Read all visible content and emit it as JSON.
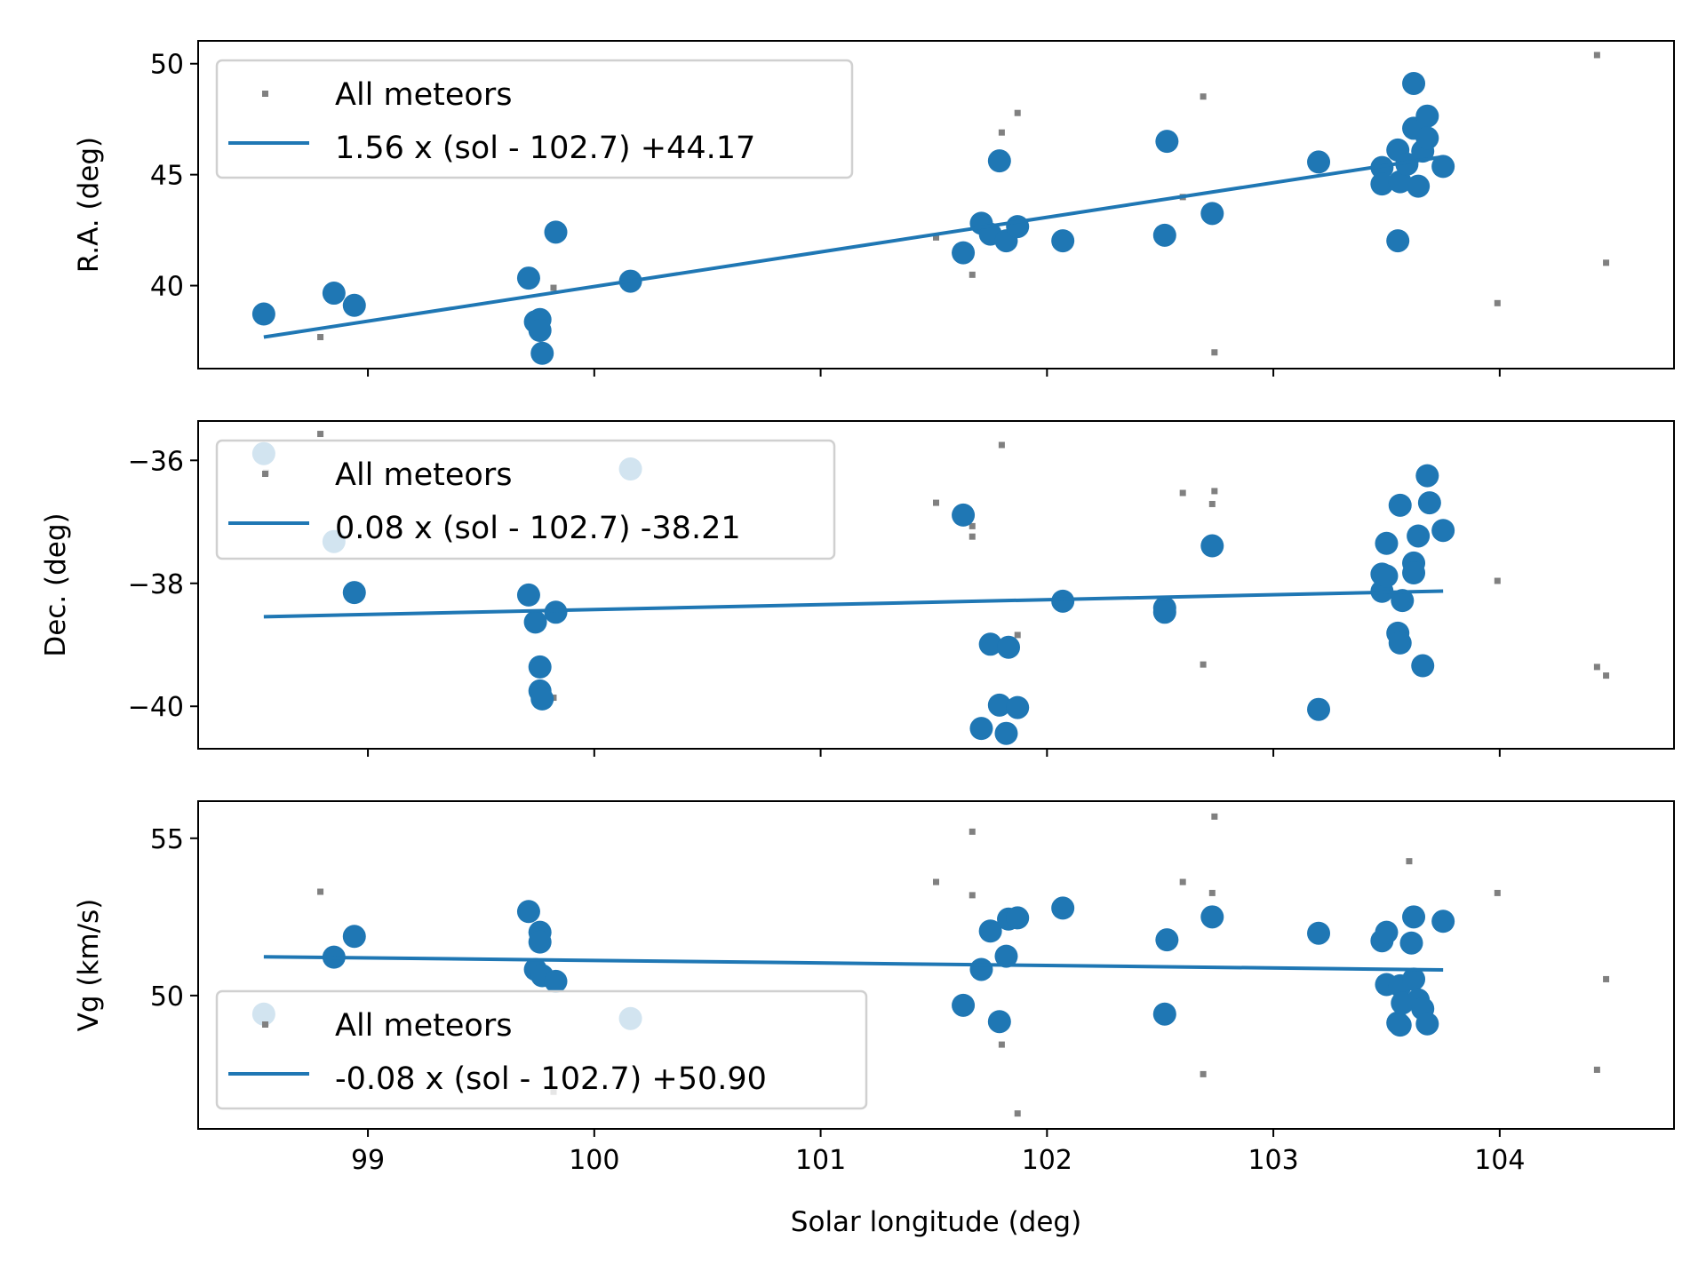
{
  "colors": {
    "fit": "#1f77b4",
    "points": "#1f77b4",
    "all": "#808080"
  },
  "xaxis": {
    "label": "Solar longitude (deg)",
    "lim": [
      98.25,
      104.77
    ],
    "ticks": [
      99,
      100,
      101,
      102,
      103,
      104
    ]
  },
  "chart_data": [
    {
      "type": "scatter",
      "ylabel": "R.A. (deg)",
      "xlim": [
        98.25,
        104.77
      ],
      "ylim": [
        36.26,
        51.03
      ],
      "yticks": [
        40,
        45,
        50
      ],
      "legend": {
        "placement": "upper-left",
        "entries": [
          "All meteors",
          "1.56 x (sol - 102.7) +44.17"
        ]
      },
      "fit": {
        "slope": 1.56,
        "ref": 102.7,
        "intercept": 44.17,
        "x_range": [
          98.54,
          103.75
        ]
      },
      "points": [
        [
          98.54,
          38.72
        ],
        [
          98.85,
          39.66
        ],
        [
          98.94,
          39.11
        ],
        [
          99.71,
          40.34
        ],
        [
          99.74,
          38.37
        ],
        [
          99.76,
          38.47
        ],
        [
          99.76,
          37.98
        ],
        [
          99.77,
          36.95
        ],
        [
          99.83,
          42.41
        ],
        [
          100.16,
          40.2
        ],
        [
          101.63,
          41.48
        ],
        [
          101.71,
          42.81
        ],
        [
          101.75,
          42.32
        ],
        [
          101.79,
          45.62
        ],
        [
          101.82,
          42.02
        ],
        [
          101.87,
          42.66
        ],
        [
          102.07,
          42.02
        ],
        [
          102.52,
          42.27
        ],
        [
          102.53,
          46.5
        ],
        [
          102.73,
          43.25
        ],
        [
          103.2,
          45.57
        ],
        [
          103.48,
          45.32
        ],
        [
          103.48,
          44.58
        ],
        [
          103.55,
          46.11
        ],
        [
          103.55,
          42.02
        ],
        [
          103.56,
          44.68
        ],
        [
          103.59,
          45.47
        ],
        [
          103.62,
          49.11
        ],
        [
          103.62,
          47.09
        ],
        [
          103.64,
          44.48
        ],
        [
          103.66,
          46.06
        ],
        [
          103.68,
          47.64
        ],
        [
          103.68,
          46.65
        ],
        [
          103.75,
          45.37
        ]
      ],
      "all_meteors": [
        [
          98.79,
          37.68
        ],
        [
          99.82,
          39.9
        ],
        [
          101.51,
          42.17
        ],
        [
          101.67,
          40.49
        ],
        [
          101.8,
          46.9
        ],
        [
          101.87,
          47.78
        ],
        [
          102.6,
          43.99
        ],
        [
          102.69,
          48.52
        ],
        [
          102.74,
          36.99
        ],
        [
          103.99,
          39.21
        ],
        [
          104.43,
          50.39
        ],
        [
          104.47,
          41.03
        ]
      ]
    },
    {
      "type": "scatter",
      "ylabel": "Dec. (deg)",
      "xlim": [
        98.25,
        104.77
      ],
      "ylim": [
        -40.69,
        -35.36
      ],
      "yticks": [
        -40,
        -38,
        -36
      ],
      "ytick_labels": [
        "−40",
        "−38",
        "−36"
      ],
      "legend": {
        "placement": "upper-left",
        "entries": [
          "All meteors",
          "0.08 x (sol - 102.7) -38.21"
        ]
      },
      "fit": {
        "slope": 0.08,
        "ref": 102.7,
        "intercept": -38.21,
        "x_range": [
          98.54,
          103.75
        ]
      },
      "points": [
        [
          98.54,
          -35.89
        ],
        [
          98.85,
          -37.32
        ],
        [
          100.16,
          -36.14
        ],
        [
          98.94,
          -38.15
        ],
        [
          99.71,
          -38.19
        ],
        [
          99.74,
          -38.63
        ],
        [
          99.76,
          -39.36
        ],
        [
          99.76,
          -39.75
        ],
        [
          99.77,
          -39.88
        ],
        [
          99.83,
          -38.47
        ],
        [
          101.63,
          -36.89
        ],
        [
          101.71,
          -40.36
        ],
        [
          101.75,
          -38.99
        ],
        [
          101.79,
          -39.98
        ],
        [
          101.82,
          -40.44
        ],
        [
          101.83,
          -39.04
        ],
        [
          101.87,
          -40.02
        ],
        [
          102.07,
          -38.29
        ],
        [
          102.52,
          -38.4
        ],
        [
          102.52,
          -38.47
        ],
        [
          102.73,
          -37.39
        ],
        [
          103.2,
          -40.05
        ],
        [
          103.48,
          -38.13
        ],
        [
          103.5,
          -37.35
        ],
        [
          103.48,
          -37.85
        ],
        [
          103.5,
          -37.88
        ],
        [
          103.55,
          -38.81
        ],
        [
          103.56,
          -36.73
        ],
        [
          103.56,
          -38.97
        ],
        [
          103.57,
          -38.28
        ],
        [
          103.62,
          -37.67
        ],
        [
          103.62,
          -37.83
        ],
        [
          103.64,
          -37.23
        ],
        [
          103.66,
          -39.34
        ],
        [
          103.68,
          -36.25
        ],
        [
          103.69,
          -36.69
        ],
        [
          103.75,
          -37.14
        ]
      ],
      "all_meteors": [
        [
          98.79,
          -35.57
        ],
        [
          98.55,
          -36.2
        ],
        [
          99.82,
          -39.86
        ],
        [
          101.51,
          -36.69
        ],
        [
          101.67,
          -37.07
        ],
        [
          101.67,
          -37.24
        ],
        [
          101.8,
          -35.75
        ],
        [
          101.87,
          -38.84
        ],
        [
          102.6,
          -36.53
        ],
        [
          102.69,
          -39.32
        ],
        [
          102.73,
          -36.71
        ],
        [
          102.74,
          -36.5
        ],
        [
          103.99,
          -37.96
        ],
        [
          104.43,
          -39.36
        ],
        [
          104.47,
          -39.5
        ]
      ]
    },
    {
      "type": "scatter",
      "ylabel": "Vg (km/s)",
      "xlim": [
        98.25,
        104.77
      ],
      "ylim": [
        45.76,
        56.18
      ],
      "yticks": [
        50,
        55
      ],
      "legend": {
        "placement": "lower-left",
        "entries": [
          "All meteors",
          "-0.08 x (sol - 102.7) +50.90"
        ]
      },
      "fit": {
        "slope": -0.08,
        "ref": 102.7,
        "intercept": 50.9,
        "x_range": [
          98.54,
          103.75
        ]
      },
      "points": [
        [
          98.54,
          49.41
        ],
        [
          100.16,
          49.27
        ],
        [
          98.85,
          51.22
        ],
        [
          98.94,
          51.88
        ],
        [
          99.71,
          52.67
        ],
        [
          99.74,
          50.83
        ],
        [
          99.76,
          52.01
        ],
        [
          99.76,
          51.7
        ],
        [
          99.77,
          50.63
        ],
        [
          99.83,
          50.45
        ],
        [
          101.63,
          49.69
        ],
        [
          101.71,
          50.83
        ],
        [
          101.75,
          52.05
        ],
        [
          101.79,
          49.17
        ],
        [
          101.82,
          51.25
        ],
        [
          101.83,
          52.43
        ],
        [
          101.87,
          52.47
        ],
        [
          102.07,
          52.78
        ],
        [
          102.52,
          49.41
        ],
        [
          102.53,
          51.77
        ],
        [
          102.73,
          52.5
        ],
        [
          103.2,
          51.98
        ],
        [
          103.48,
          51.74
        ],
        [
          103.5,
          52.01
        ],
        [
          103.5,
          50.35
        ],
        [
          103.55,
          49.13
        ],
        [
          103.56,
          50.31
        ],
        [
          103.56,
          49.06
        ],
        [
          103.57,
          49.76
        ],
        [
          103.62,
          52.5
        ],
        [
          103.61,
          51.67
        ],
        [
          103.62,
          50.52
        ],
        [
          103.64,
          49.86
        ],
        [
          103.66,
          49.58
        ],
        [
          103.68,
          49.1
        ],
        [
          103.75,
          52.36
        ]
      ],
      "all_meteors": [
        [
          98.79,
          53.3
        ],
        [
          101.51,
          53.61
        ],
        [
          101.67,
          55.21
        ],
        [
          101.67,
          53.19
        ],
        [
          101.8,
          48.44
        ],
        [
          101.87,
          46.25
        ],
        [
          102.6,
          53.61
        ],
        [
          102.69,
          47.5
        ],
        [
          102.73,
          53.26
        ],
        [
          102.74,
          55.69
        ],
        [
          103.6,
          54.27
        ],
        [
          103.99,
          53.26
        ],
        [
          104.47,
          50.52
        ],
        [
          104.43,
          47.64
        ],
        [
          99.82,
          46.94
        ],
        [
          98.55,
          49.13
        ]
      ]
    }
  ]
}
